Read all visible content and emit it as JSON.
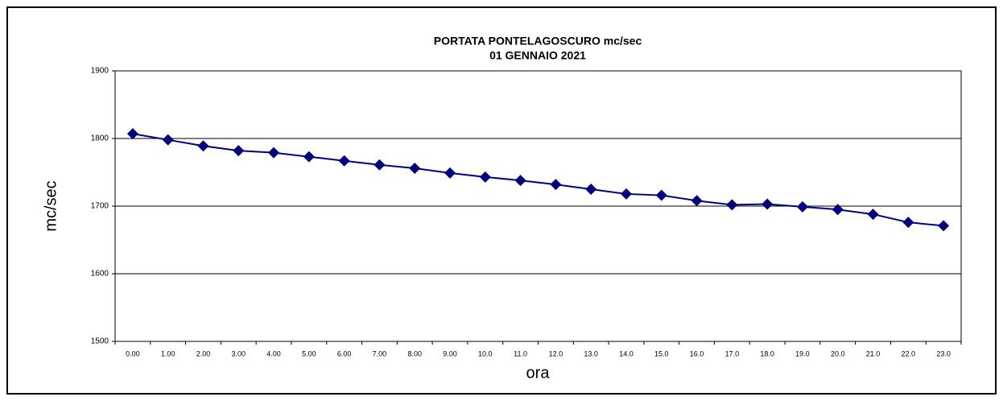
{
  "chart_data": {
    "type": "line",
    "title": "PORTATA PONTELAGOSCURO mc/sec",
    "subtitle": "01 GENNAIO 2021",
    "x_label": "ora",
    "y_label": "mc/sec",
    "categories": [
      "0.00",
      "1.00",
      "2.00",
      "3.00",
      "4.00",
      "5.00",
      "6.00",
      "7.00",
      "8.00",
      "9.00",
      "10.0",
      "11.0",
      "12.0",
      "13.0",
      "14.0",
      "15.0",
      "16.0",
      "17.0",
      "18.0",
      "19.0",
      "20.0",
      "21.0",
      "22.0",
      "23.0"
    ],
    "values": [
      1807,
      1798,
      1789,
      1782,
      1779,
      1773,
      1767,
      1761,
      1756,
      1749,
      1743,
      1738,
      1732,
      1725,
      1718,
      1716,
      1708,
      1702,
      1703,
      1699,
      1695,
      1688,
      1676,
      1671
    ],
    "color": "#000080",
    "ylim": [
      1500,
      1900
    ],
    "yticks": [
      1500,
      1600,
      1700,
      1800,
      1900
    ],
    "grid": true
  }
}
